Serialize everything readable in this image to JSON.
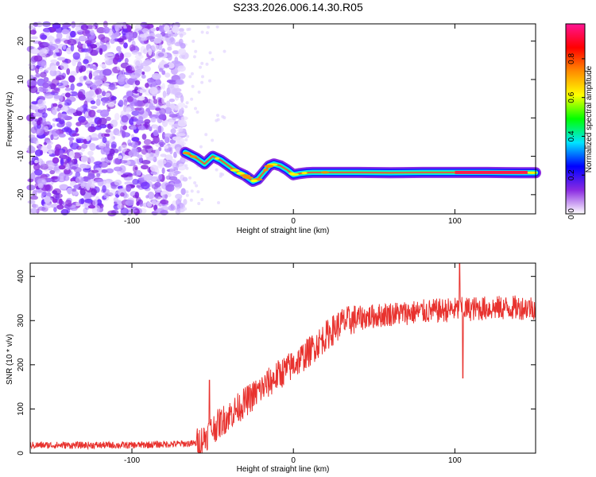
{
  "title": "S233.2026.006.14.30.R05",
  "chart_data": [
    {
      "type": "heatmap",
      "xlabel": "Height of straight line (km)",
      "ylabel": "Frequency (Hz)",
      "xlim": [
        -163,
        150
      ],
      "ylim": [
        -25,
        24.5
      ],
      "xticks": [
        -100,
        0,
        100
      ],
      "yticks": [
        -20,
        -10,
        0,
        10,
        20
      ],
      "colorbar": {
        "label": "Normalized spectral amplitude",
        "range": [
          0,
          0.98
        ],
        "ticks": [
          "0.0",
          "0.2",
          "0.4",
          "0.6",
          "0.8"
        ],
        "colormap": [
          "#ffffff",
          "#8a2be2",
          "#0000ff",
          "#00e5ff",
          "#00ff00",
          "#ffff00",
          "#ff8c00",
          "#ff0000",
          "#ff1493"
        ]
      },
      "noise_region_x": [
        -163,
        -67
      ],
      "ridge": {
        "x": [
          -67,
          -60,
          -55,
          -50,
          -45,
          -40,
          -35,
          -30,
          -25,
          -22,
          -18,
          -15,
          -12,
          -8,
          -4,
          0,
          4,
          8,
          12,
          20,
          40,
          60,
          80,
          100,
          120,
          140,
          150
        ],
        "y": [
          -9,
          -10.5,
          -12,
          -10,
          -11,
          -12.5,
          -14,
          -15,
          -16.5,
          -16,
          -14,
          -12.5,
          -12,
          -12.5,
          -13.5,
          -14.8,
          -14.5,
          -14.3,
          -14.2,
          -14.2,
          -14.2,
          -14.3,
          -14.2,
          -14.2,
          -14.2,
          -14.3,
          -14.3
        ]
      }
    },
    {
      "type": "line",
      "xlabel": "Height of straight line (km)",
      "ylabel": "SNR (10 * v/v)",
      "xlim": [
        -163,
        150
      ],
      "ylim": [
        0,
        430
      ],
      "xticks": [
        -100,
        0,
        100
      ],
      "yticks": [
        0,
        100,
        200,
        300,
        400
      ],
      "color": "#e8322e",
      "trend": {
        "x": [
          -163,
          -130,
          -100,
          -80,
          -60,
          -55,
          -50,
          -40,
          -30,
          -20,
          -10,
          0,
          10,
          20,
          30,
          40,
          50,
          60,
          80,
          100,
          120,
          150
        ],
        "y": [
          18,
          18,
          18,
          20,
          22,
          35,
          55,
          85,
          115,
          145,
          175,
          200,
          230,
          265,
          295,
          305,
          310,
          315,
          320,
          325,
          328,
          330
        ]
      },
      "spikes": [
        {
          "x": -52,
          "y": 165
        },
        {
          "x": 103,
          "y": 430
        },
        {
          "x": 105,
          "y": 170
        }
      ]
    }
  ]
}
